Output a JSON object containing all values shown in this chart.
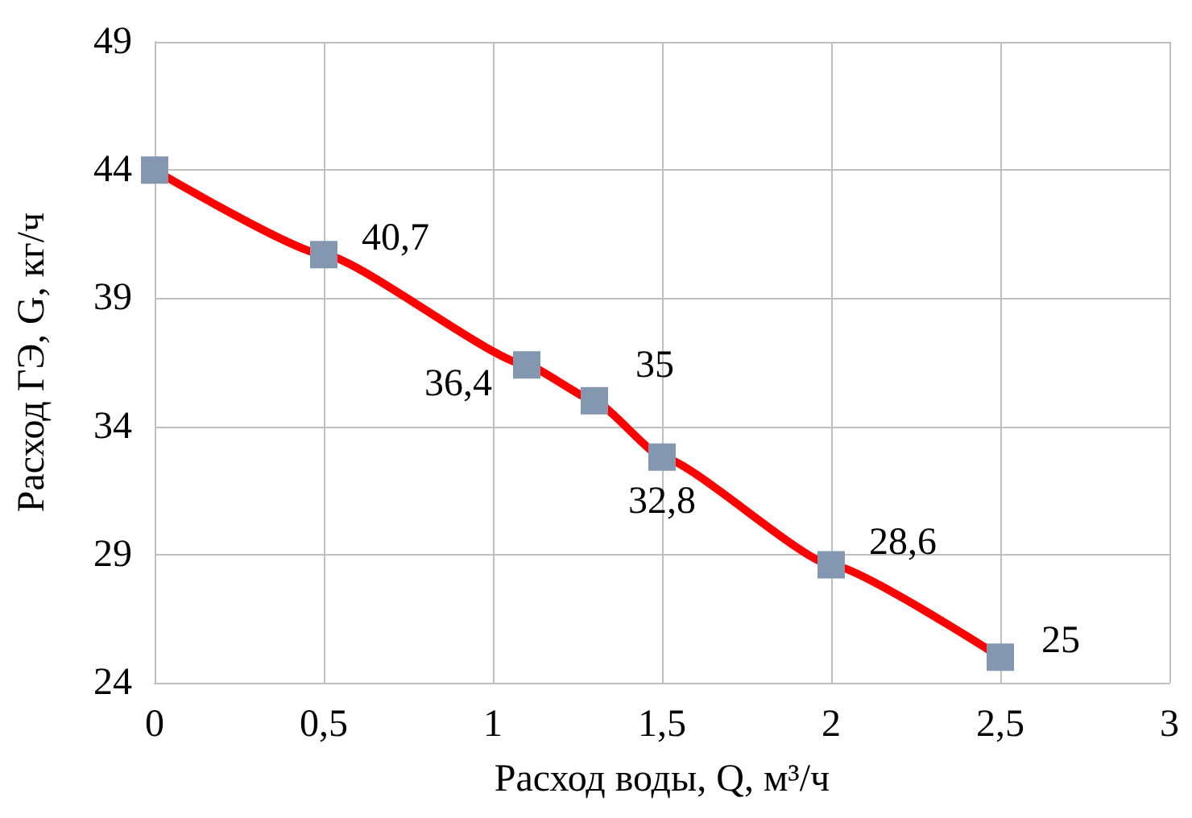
{
  "chart_data": {
    "type": "line",
    "xlabel": "Расход воды, Q, м³/ч",
    "ylabel": "Расход ГЭ, G, кг/ч",
    "x": [
      0,
      0.5,
      1.1,
      1.3,
      1.5,
      2,
      2.5
    ],
    "series": [
      {
        "color": "#ff0000",
        "values": [
          44,
          40.7,
          36.4,
          35,
          32.8,
          28.6,
          25
        ],
        "value_labels": [
          null,
          "40,7",
          "36,4",
          "35",
          "32,8",
          "28,6",
          "25"
        ]
      }
    ],
    "xlim": [
      0,
      3
    ],
    "xticks": [
      0,
      {
        "value": 0.5,
        "label": "0,5"
      },
      1,
      {
        "value": 1.5,
        "label": "1,5"
      },
      2,
      {
        "value": 2.5,
        "label": "2,5"
      },
      3
    ],
    "ylim": [
      24,
      49
    ],
    "yticks": [
      24,
      29,
      34,
      39,
      44,
      49
    ],
    "grid": true,
    "marker": "square",
    "line_style": "solid"
  }
}
